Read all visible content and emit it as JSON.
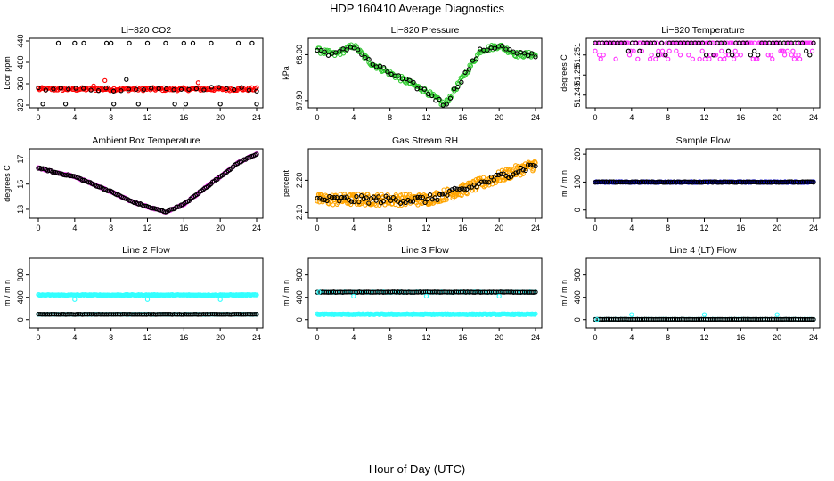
{
  "title": "HDP  160410  Average Diagnostics",
  "xlabel": "Hour of Day (UTC)",
  "colors": {
    "black": "#000000",
    "red": "#ff0000",
    "green": "#33cc33",
    "magenta": "#ff33ff",
    "orange": "#ffa500",
    "blue": "#0000cc",
    "cyan": "#33ffff"
  },
  "chart_data": [
    {
      "type": "scatter",
      "title": "Li−820 CO2",
      "ylabel": "Lcor ppm",
      "xlim": [
        0,
        24
      ],
      "ylim": [
        320,
        440
      ],
      "xticks": [
        "0",
        "4",
        "8",
        "12",
        "16",
        "20",
        "24"
      ],
      "yticks": [
        "320",
        "360",
        "400",
        "440"
      ],
      "series": [
        {
          "name": "avg",
          "color": "red",
          "pattern": "flat",
          "base": 350,
          "noise": 3,
          "n": 180,
          "spikes": [
            356,
            362,
            366
          ]
        },
        {
          "name": "outliers",
          "color": "black",
          "pattern": "sparse",
          "x": [
            0.5,
            2.2,
            3.0,
            4.0,
            5.0,
            7.5,
            8.0,
            8.3,
            10.0,
            11.0,
            12.0,
            14.0,
            15.0,
            16.0,
            16.2,
            17.0,
            19.0,
            20.0,
            22.0,
            23.5,
            24.0
          ],
          "y": [
            322,
            436,
            322,
            436,
            436,
            436,
            436,
            322,
            436,
            322,
            436,
            436,
            322,
            436,
            322,
            436,
            436,
            322,
            436,
            436,
            322
          ]
        },
        {
          "name": "mid",
          "color": "black",
          "pattern": "flat",
          "base": 350,
          "noise": 4,
          "n": 30,
          "spikes": [
            368
          ]
        }
      ]
    },
    {
      "type": "scatter",
      "title": "Li−820 Pressure",
      "ylabel": "kPa",
      "xlim": [
        0,
        24
      ],
      "ylim": [
        67.89,
        68.03
      ],
      "xticks": [
        "0",
        "4",
        "8",
        "12",
        "16",
        "20",
        "24"
      ],
      "yticks": [
        "67.90",
        "68.00"
      ],
      "series": [
        {
          "name": "avg",
          "color": "green",
          "pattern": "curve",
          "noise": 0.006,
          "n": 200,
          "curve_x": [
            0,
            2,
            4,
            6,
            8,
            10,
            12,
            14,
            16,
            18,
            20,
            22,
            24
          ],
          "curve_y": [
            68.01,
            68.0,
            68.02,
            67.98,
            67.96,
            67.94,
            67.92,
            67.89,
            67.95,
            68.01,
            68.02,
            68.0,
            68.0
          ]
        },
        {
          "name": "point",
          "color": "black",
          "pattern": "curve",
          "noise": 0.006,
          "n": 60,
          "curve_x": [
            0,
            2,
            4,
            6,
            8,
            10,
            12,
            14,
            16,
            18,
            20,
            22,
            24
          ],
          "curve_y": [
            68.01,
            68.0,
            68.02,
            67.98,
            67.96,
            67.94,
            67.92,
            67.89,
            67.95,
            68.01,
            68.02,
            68.0,
            68.0
          ]
        }
      ]
    },
    {
      "type": "scatter",
      "title": "Li−820 Temperature",
      "ylabel": "degrees C",
      "xlim": [
        0,
        24
      ],
      "ylim": [
        51.2485,
        51.2517
      ],
      "xticks": [
        "0",
        "4",
        "8",
        "12",
        "16",
        "20",
        "24"
      ],
      "yticks": [
        "51.249",
        "51.25",
        "51.251"
      ],
      "series": [
        {
          "name": "avg",
          "color": "magenta",
          "pattern": "levels",
          "n": 160,
          "levels": [
            51.2516,
            51.2512,
            51.251,
            51.2508
          ]
        },
        {
          "name": "point",
          "color": "black",
          "pattern": "levels",
          "n": 60,
          "levels": [
            51.2516,
            51.2512,
            51.251
          ]
        }
      ]
    },
    {
      "type": "scatter",
      "title": "Ambient Box Temperature",
      "ylabel": "degrees C",
      "xlim": [
        0,
        24
      ],
      "ylim": [
        12.5,
        17.6
      ],
      "xticks": [
        "0",
        "4",
        "8",
        "12",
        "16",
        "20",
        "24"
      ],
      "yticks": [
        "13",
        "15",
        "17"
      ],
      "series": [
        {
          "name": "avg",
          "color": "magenta",
          "pattern": "curve",
          "noise": 0.05,
          "n": 140,
          "curve_x": [
            0,
            2,
            4,
            6,
            8,
            10,
            12,
            14,
            16,
            18,
            20,
            22,
            24
          ],
          "curve_y": [
            16.3,
            15.9,
            15.6,
            15.0,
            14.4,
            13.7,
            13.2,
            12.8,
            13.4,
            14.5,
            15.6,
            16.7,
            17.4
          ]
        },
        {
          "name": "point",
          "color": "black",
          "pattern": "curve",
          "noise": 0.05,
          "n": 140,
          "curve_x": [
            0,
            2,
            4,
            6,
            8,
            10,
            12,
            14,
            16,
            18,
            20,
            22,
            24
          ],
          "curve_y": [
            16.3,
            15.9,
            15.6,
            15.0,
            14.4,
            13.7,
            13.2,
            12.8,
            13.4,
            14.5,
            15.6,
            16.7,
            17.4
          ]
        }
      ]
    },
    {
      "type": "scatter",
      "title": "Gas Stream RH",
      "ylabel": "percent",
      "xlim": [
        0,
        24
      ],
      "ylim": [
        2.09,
        2.29
      ],
      "xticks": [
        "0",
        "4",
        "8",
        "12",
        "16",
        "20",
        "24"
      ],
      "yticks": [
        "2.10",
        "2.20"
      ],
      "series": [
        {
          "name": "avg",
          "color": "orange",
          "pattern": "curve",
          "noise": 0.018,
          "n": 320,
          "curve_x": [
            0,
            4,
            8,
            12,
            16,
            20,
            24
          ],
          "curve_y": [
            2.14,
            2.14,
            2.14,
            2.14,
            2.17,
            2.21,
            2.25
          ]
        },
        {
          "name": "point",
          "color": "black",
          "pattern": "curve",
          "noise": 0.012,
          "n": 90,
          "curve_x": [
            0,
            4,
            8,
            12,
            16,
            20,
            24
          ],
          "curve_y": [
            2.14,
            2.14,
            2.14,
            2.14,
            2.17,
            2.21,
            2.25
          ]
        }
      ]
    },
    {
      "type": "scatter",
      "title": "Sample Flow",
      "ylabel": "m / m n",
      "xlim": [
        0,
        24
      ],
      "ylim": [
        -20,
        210
      ],
      "xticks": [
        "0",
        "4",
        "8",
        "12",
        "16",
        "20",
        "24"
      ],
      "yticks": [
        "0",
        "100",
        "200"
      ],
      "series": [
        {
          "name": "avg",
          "color": "blue",
          "pattern": "flat",
          "base": 100,
          "noise": 1.5,
          "n": 200,
          "spikes": []
        },
        {
          "name": "point",
          "color": "black",
          "pattern": "flat",
          "base": 100,
          "noise": 1.5,
          "n": 120,
          "spikes": []
        }
      ]
    },
    {
      "type": "scatter",
      "title": "Line 2 Flow",
      "ylabel": "m / m n",
      "xlim": [
        0,
        24
      ],
      "ylim": [
        -100,
        1050
      ],
      "xticks": [
        "0",
        "4",
        "8",
        "12",
        "16",
        "20",
        "24"
      ],
      "yticks": [
        "0",
        "400",
        "800"
      ],
      "series": [
        {
          "name": "high",
          "color": "cyan",
          "pattern": "flat",
          "base": 440,
          "noise": 8,
          "n": 260,
          "spikes": []
        },
        {
          "name": "low-avg",
          "color": "cyan",
          "pattern": "flat",
          "base": 95,
          "noise": 3,
          "n": 120,
          "spikes": []
        },
        {
          "name": "low",
          "color": "black",
          "pattern": "flat",
          "base": 95,
          "noise": 3,
          "n": 120,
          "spikes": []
        },
        {
          "name": "dips",
          "color": "cyan",
          "pattern": "sparse",
          "x": [
            4.0,
            12.0,
            20.0
          ],
          "y": [
            360,
            360,
            360
          ]
        }
      ]
    },
    {
      "type": "scatter",
      "title": "Line 3 Flow",
      "ylabel": "m / m n",
      "xlim": [
        0,
        24
      ],
      "ylim": [
        -100,
        1050
      ],
      "xticks": [
        "0",
        "4",
        "8",
        "12",
        "16",
        "20",
        "24"
      ],
      "yticks": [
        "0",
        "400",
        "800"
      ],
      "series": [
        {
          "name": "high-avg",
          "color": "cyan",
          "pattern": "flat",
          "base": 490,
          "noise": 4,
          "n": 80,
          "spikes": []
        },
        {
          "name": "high",
          "color": "black",
          "pattern": "flat",
          "base": 490,
          "noise": 4,
          "n": 120,
          "spikes": []
        },
        {
          "name": "low",
          "color": "cyan",
          "pattern": "flat",
          "base": 95,
          "noise": 8,
          "n": 260,
          "spikes": []
        },
        {
          "name": "dips",
          "color": "cyan",
          "pattern": "sparse",
          "x": [
            0.2,
            4.0,
            12.0,
            20.0
          ],
          "y": [
            490,
            420,
            420,
            420
          ]
        }
      ]
    },
    {
      "type": "scatter",
      "title": "Line 4 (LT) Flow",
      "ylabel": "m / m n",
      "xlim": [
        0,
        24
      ],
      "ylim": [
        -100,
        1050
      ],
      "xticks": [
        "0",
        "4",
        "8",
        "12",
        "16",
        "20",
        "24"
      ],
      "yticks": [
        "0",
        "400",
        "800"
      ],
      "series": [
        {
          "name": "avg",
          "color": "cyan",
          "pattern": "flat",
          "base": 5,
          "noise": 2,
          "n": 120,
          "spikes": []
        },
        {
          "name": "point",
          "color": "black",
          "pattern": "flat",
          "base": 5,
          "noise": 2,
          "n": 120,
          "spikes": []
        },
        {
          "name": "spikes",
          "color": "cyan",
          "pattern": "sparse",
          "x": [
            0.2,
            4.0,
            12.0,
            20.0
          ],
          "y": [
            0,
            90,
            90,
            90
          ]
        }
      ]
    }
  ]
}
